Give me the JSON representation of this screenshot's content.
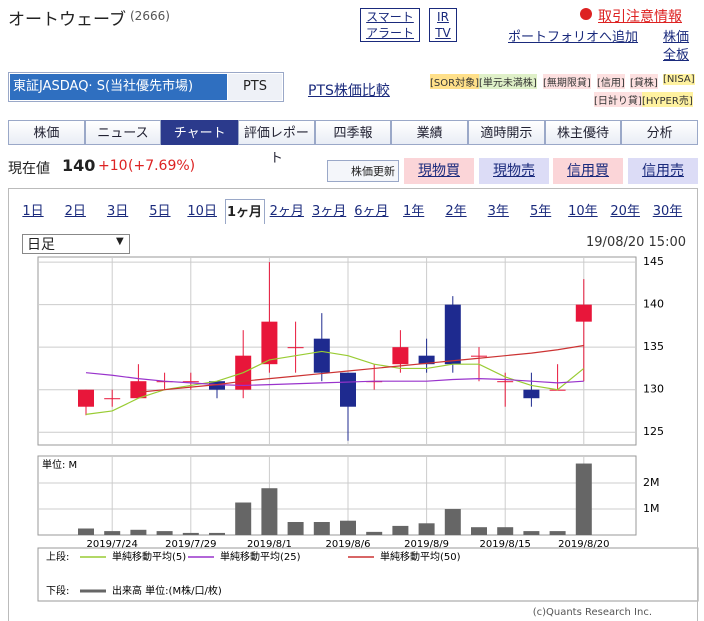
{
  "header": {
    "name": "オートウェーブ",
    "code": "(2666)",
    "alert": [
      "スマート",
      "アラート"
    ],
    "ir": [
      "IR",
      "TV"
    ],
    "caution": "取引注意情報",
    "portfolio": "ポートフォリオへ追加",
    "links": [
      "株価",
      "全板"
    ]
  },
  "market": {
    "primary": "東証JASDAQ· S(当社優先市場)",
    "pts": "PTS",
    "compare": "PTS株価比較",
    "badges": [
      "[SOR対象]",
      "[単元未満株]",
      "[無期限貸]",
      "[信用]",
      "[貸株]",
      "[NISA]",
      "[日計り貸]",
      "[HYPER売]"
    ]
  },
  "tabs": [
    "株価",
    "ニュース",
    "チャート",
    "評価レポート",
    "四季報",
    "業績",
    "適時開示",
    "株主優待",
    "分析"
  ],
  "quote": {
    "label": "現在値",
    "price": "140",
    "change": "+10",
    "percent": "(+7.69%)",
    "refresh": "株価更新",
    "buttons": [
      "現物買",
      "現物売",
      "信用買",
      "信用売"
    ]
  },
  "periods": [
    "1日",
    "2日",
    "3日",
    "5日",
    "10日",
    "1ヶ月",
    "2ヶ月",
    "3ヶ月",
    "6ヶ月",
    "1年",
    "2年",
    "3年",
    "5年",
    "10年",
    "20年",
    "30年"
  ],
  "select": "日足",
  "timestamp": "19/08/20 15:00",
  "chart_data": {
    "type": "candlestick",
    "x": [
      null,
      "2019/7/24",
      null,
      null,
      "2019/7/29",
      null,
      null,
      "2019/8/1",
      null,
      null,
      "2019/8/6",
      null,
      null,
      "2019/8/9",
      null,
      null,
      "2019/8/15",
      null,
      null,
      "2019/8/20"
    ],
    "open": [
      128,
      129,
      129,
      131,
      131,
      131,
      130,
      133,
      135,
      136,
      132,
      131,
      133,
      134,
      140,
      134,
      131,
      130,
      130,
      138
    ],
    "high": [
      130,
      130,
      133,
      132,
      132,
      131,
      137,
      145,
      138,
      139,
      132,
      133,
      137,
      136,
      141,
      135,
      132,
      132,
      133,
      143
    ],
    "low": [
      127,
      128,
      129,
      130,
      130,
      129,
      129,
      132,
      132,
      131,
      124,
      130,
      132,
      132,
      132,
      131,
      128,
      128,
      130,
      131
    ],
    "close": [
      130,
      129,
      131,
      131,
      131,
      130,
      134,
      138,
      135,
      132,
      128,
      131,
      135,
      133,
      133,
      134,
      131,
      129,
      130,
      140
    ],
    "up_color": "#e8163a",
    "down_color": "#1e2a8f",
    "series": [
      {
        "name": "単純移動平均(5)",
        "color": "#99cc33",
        "values": [
          127.1,
          127.5,
          129,
          130,
          130.5,
          131,
          132,
          133.5,
          134,
          134.5,
          134,
          133,
          132.5,
          132.5,
          133,
          133,
          131.5,
          130.5,
          130,
          132.5
        ]
      },
      {
        "name": "単純移動平均(25)",
        "color": "#9933cc",
        "values": [
          132,
          131.7,
          131.3,
          131,
          130.8,
          130.6,
          130.5,
          130.6,
          130.7,
          130.8,
          130.9,
          131,
          131,
          131,
          131.2,
          131.3,
          131.2,
          131,
          130.8,
          131
        ]
      },
      {
        "name": "単純移動平均(50)",
        "color": "#cc3333",
        "values": [
          null,
          null,
          129.7,
          130,
          130.3,
          130.6,
          131,
          131.3,
          131.6,
          131.9,
          132.2,
          132.5,
          132.8,
          133.1,
          133.4,
          133.7,
          134,
          134.3,
          134.7,
          135.2
        ]
      }
    ],
    "ylim": [
      123.5,
      145.6
    ],
    "yticks": [
      125,
      130,
      135,
      140,
      145
    ],
    "volume": {
      "unit": "単位: M",
      "color": "#666666",
      "values": [
        0.25,
        0.15,
        0.2,
        0.15,
        0.08,
        0.08,
        1.25,
        1.8,
        0.5,
        0.5,
        0.55,
        0.12,
        0.35,
        0.45,
        1.0,
        0.3,
        0.3,
        0.15,
        0.15,
        2.75
      ],
      "ylim": [
        0,
        3.04
      ],
      "yticks": [
        {
          "value": 1,
          "label": "1M"
        },
        {
          "value": 2,
          "label": "2M"
        }
      ]
    },
    "legend": {
      "upper": "上段:",
      "lower": "下段:",
      "volume": "出来高 単位:(M株/口/枚)"
    },
    "copyright": "(c)Quants Research Inc."
  }
}
